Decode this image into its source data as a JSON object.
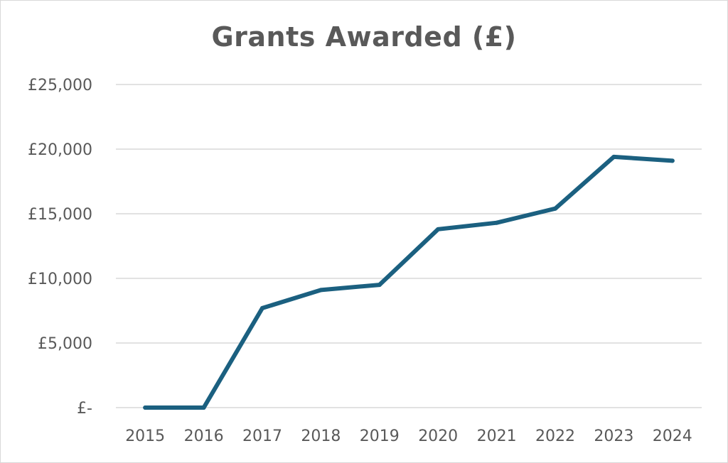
{
  "chart_data": {
    "type": "line",
    "title": "Grants Awarded (£)",
    "xlabel": "",
    "ylabel": "",
    "categories": [
      "2015",
      "2016",
      "2017",
      "2018",
      "2019",
      "2020",
      "2021",
      "2022",
      "2023",
      "2024"
    ],
    "series": [
      {
        "values": [
          0,
          0,
          7700,
          9100,
          9500,
          13800,
          14300,
          15400,
          19400,
          19100
        ],
        "color": "#1b6080"
      }
    ],
    "yticks": [
      0,
      5000,
      10000,
      15000,
      20000,
      25000
    ],
    "ytick_labels": [
      "£-",
      "£5,000",
      "£10,000",
      "£15,000",
      "£20,000",
      "£25,000"
    ],
    "ylim": [
      0,
      25000
    ],
    "grid": true,
    "legend": "none"
  }
}
